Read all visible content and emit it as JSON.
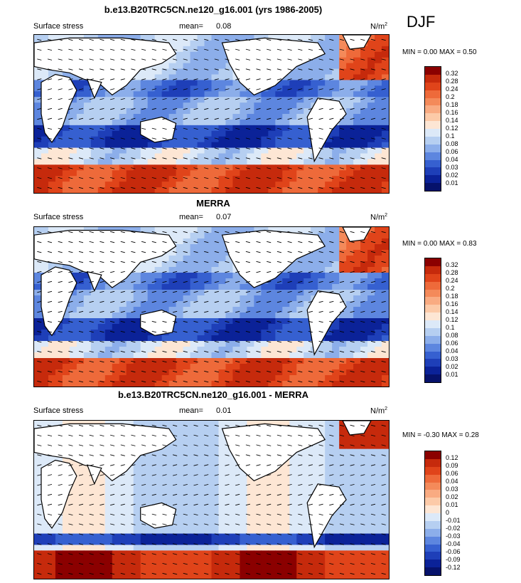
{
  "season": "DJF",
  "panels": [
    {
      "id": "model",
      "title": "b.e13.B20TRC5CN.ne120_g16.001 (yrs 1986-2005)",
      "left_label": "Surface stress",
      "mean_label": "mean=",
      "mean_value": "0.08",
      "units": "N/m",
      "units_sup": "2",
      "min_label": "MIN =",
      "min_value": "0.00",
      "max_label": "MAX =",
      "max_value": "0.50"
    },
    {
      "id": "merra",
      "title": "MERRA",
      "left_label": "Surface stress",
      "mean_label": "mean=",
      "mean_value": "0.07",
      "units": "N/m",
      "units_sup": "2",
      "min_label": "MIN =",
      "min_value": "0.00",
      "max_label": "MAX =",
      "max_value": "0.83"
    },
    {
      "id": "diff",
      "title": "b.e13.B20TRC5CN.ne120_g16.001 - MERRA",
      "left_label": "Surface stress",
      "mean_label": "mean=",
      "mean_value": "0.01",
      "units": "N/m",
      "units_sup": "2",
      "min_label": "MIN =",
      "min_value": "-0.30",
      "max_label": "MAX =",
      "max_value": "0.28"
    }
  ],
  "chart_data": [
    {
      "type": "heatmap",
      "title": "b.e13.B20TRC5CN.ne120_g16.001 (yrs 1986-2005)",
      "variable": "Surface stress",
      "units": "N/m2",
      "mean": 0.08,
      "min": 0.0,
      "max": 0.5,
      "colorbar_levels": [
        "0.32",
        "0.28",
        "0.24",
        "0.2",
        "0.18",
        "0.16",
        "0.14",
        "0.12",
        "0.1",
        "0.08",
        "0.06",
        "0.04",
        "0.03",
        "0.02",
        "0.01"
      ],
      "colorbar_colors": [
        "#8b0000",
        "#c62a0c",
        "#e0441a",
        "#ee6a3a",
        "#f48a5a",
        "#f9ab82",
        "#fccaa8",
        "#fde6d4",
        "#dce9f8",
        "#b6cff1",
        "#8caeea",
        "#5d86df",
        "#3660d0",
        "#1e3fb8",
        "#0b2298",
        "#06126b"
      ]
    },
    {
      "type": "heatmap",
      "title": "MERRA",
      "variable": "Surface stress",
      "units": "N/m2",
      "mean": 0.07,
      "min": 0.0,
      "max": 0.83,
      "colorbar_levels": [
        "0.32",
        "0.28",
        "0.24",
        "0.2",
        "0.18",
        "0.16",
        "0.14",
        "0.12",
        "0.1",
        "0.08",
        "0.06",
        "0.04",
        "0.03",
        "0.02",
        "0.01"
      ],
      "colorbar_colors": [
        "#8b0000",
        "#c62a0c",
        "#e0441a",
        "#ee6a3a",
        "#f48a5a",
        "#f9ab82",
        "#fccaa8",
        "#fde6d4",
        "#dce9f8",
        "#b6cff1",
        "#8caeea",
        "#5d86df",
        "#3660d0",
        "#1e3fb8",
        "#0b2298",
        "#06126b"
      ]
    },
    {
      "type": "heatmap",
      "title": "b.e13.B20TRC5CN.ne120_g16.001 - MERRA",
      "variable": "Surface stress",
      "units": "N/m2",
      "mean": 0.01,
      "min": -0.3,
      "max": 0.28,
      "colorbar_levels": [
        "0.12",
        "0.09",
        "0.06",
        "0.04",
        "0.03",
        "0.02",
        "0.01",
        "0",
        "-0.01",
        "-0.02",
        "-0.03",
        "-0.04",
        "-0.06",
        "-0.09",
        "-0.12"
      ],
      "colorbar_colors": [
        "#8b0000",
        "#c62a0c",
        "#e0441a",
        "#ee6a3a",
        "#f48a5a",
        "#f9ab82",
        "#fccaa8",
        "#fde6d4",
        "#dce9f8",
        "#b6cff1",
        "#8caeea",
        "#5d86df",
        "#3660d0",
        "#1e3fb8",
        "#0b2298",
        "#06126b"
      ]
    }
  ]
}
